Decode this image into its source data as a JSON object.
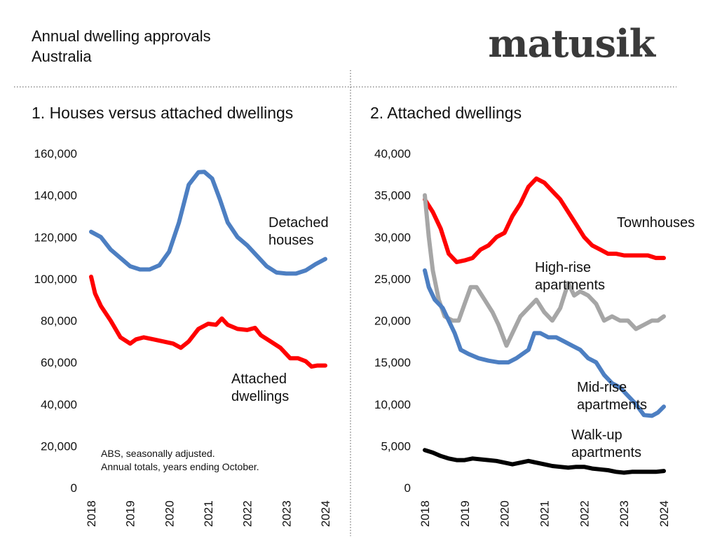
{
  "header": {
    "title": "Annual dwelling approvals",
    "subtitle": "Australia",
    "brand": "matusik"
  },
  "note": {
    "line1": "ABS, seasonally adjusted.",
    "line2": "Annual totals, years ending October."
  },
  "colors": {
    "blue": "#4d7fc2",
    "red": "#ff0000",
    "gray": "#a6a6a6",
    "black": "#000000"
  },
  "chart_data": [
    {
      "type": "line",
      "title": "1. Houses versus attached dwellings",
      "xlabel": "",
      "ylabel": "",
      "x_ticks": [
        "2018",
        "2019",
        "2020",
        "2021",
        "2022",
        "2023",
        "2024"
      ],
      "y_ticks": [
        "0",
        "20,000",
        "40,000",
        "60,000",
        "80,000",
        "100,000",
        "120,000",
        "140,000",
        "160,000"
      ],
      "xlim": [
        2018,
        2024
      ],
      "ylim": [
        0,
        160000
      ],
      "grid": false,
      "series": [
        {
          "name": "Detached houses",
          "label_lines": [
            "Detached",
            "houses"
          ],
          "color": "#4d7fc2",
          "points": [
            [
              2018.0,
              122500
            ],
            [
              2018.25,
              120000
            ],
            [
              2018.5,
              114000
            ],
            [
              2018.75,
              110000
            ],
            [
              2019.0,
              106000
            ],
            [
              2019.25,
              104500
            ],
            [
              2019.5,
              104500
            ],
            [
              2019.75,
              106500
            ],
            [
              2020.0,
              113000
            ],
            [
              2020.25,
              127000
            ],
            [
              2020.5,
              145000
            ],
            [
              2020.75,
              151000
            ],
            [
              2020.9,
              151200
            ],
            [
              2021.1,
              148000
            ],
            [
              2021.3,
              138000
            ],
            [
              2021.5,
              127000
            ],
            [
              2021.75,
              120000
            ],
            [
              2022.0,
              116000
            ],
            [
              2022.25,
              111000
            ],
            [
              2022.5,
              106000
            ],
            [
              2022.75,
              103000
            ],
            [
              2023.0,
              102500
            ],
            [
              2023.25,
              102500
            ],
            [
              2023.5,
              104000
            ],
            [
              2023.75,
              107000
            ],
            [
              2024.0,
              109500
            ]
          ]
        },
        {
          "name": "Attached dwellings",
          "label_lines": [
            "Attached",
            "dwellings"
          ],
          "color": "#ff0000",
          "points": [
            [
              2018.0,
              101000
            ],
            [
              2018.1,
              93000
            ],
            [
              2018.25,
              87000
            ],
            [
              2018.5,
              80000
            ],
            [
              2018.75,
              72000
            ],
            [
              2019.0,
              69000
            ],
            [
              2019.15,
              71000
            ],
            [
              2019.35,
              72000
            ],
            [
              2019.6,
              71000
            ],
            [
              2019.85,
              70000
            ],
            [
              2020.1,
              69000
            ],
            [
              2020.3,
              67000
            ],
            [
              2020.5,
              70000
            ],
            [
              2020.75,
              76000
            ],
            [
              2021.0,
              78500
            ],
            [
              2021.2,
              78000
            ],
            [
              2021.35,
              81000
            ],
            [
              2021.5,
              78000
            ],
            [
              2021.75,
              76000
            ],
            [
              2022.0,
              75500
            ],
            [
              2022.2,
              76500
            ],
            [
              2022.35,
              73000
            ],
            [
              2022.6,
              70000
            ],
            [
              2022.85,
              67000
            ],
            [
              2023.1,
              62000
            ],
            [
              2023.3,
              62000
            ],
            [
              2023.5,
              60500
            ],
            [
              2023.65,
              58000
            ],
            [
              2023.8,
              58500
            ],
            [
              2024.0,
              58500
            ]
          ]
        }
      ]
    },
    {
      "type": "line",
      "title": "2. Attached dwellings",
      "xlabel": "",
      "ylabel": "",
      "x_ticks": [
        "2018",
        "2019",
        "2020",
        "2021",
        "2022",
        "2023",
        "2024"
      ],
      "y_ticks": [
        "0",
        "5,000",
        "10,000",
        "15,000",
        "20,000",
        "25,000",
        "30,000",
        "35,000",
        "40,000"
      ],
      "xlim": [
        2018,
        2024
      ],
      "ylim": [
        0,
        40000
      ],
      "grid": false,
      "series": [
        {
          "name": "Townhouses",
          "label_lines": [
            "Townhouses"
          ],
          "color": "#ff0000",
          "points": [
            [
              2018.0,
              34500
            ],
            [
              2018.2,
              33000
            ],
            [
              2018.4,
              31000
            ],
            [
              2018.6,
              28000
            ],
            [
              2018.8,
              27000
            ],
            [
              2019.0,
              27200
            ],
            [
              2019.2,
              27500
            ],
            [
              2019.4,
              28500
            ],
            [
              2019.6,
              29000
            ],
            [
              2019.8,
              30000
            ],
            [
              2020.0,
              30500
            ],
            [
              2020.2,
              32500
            ],
            [
              2020.4,
              34000
            ],
            [
              2020.6,
              36000
            ],
            [
              2020.8,
              37000
            ],
            [
              2021.0,
              36500
            ],
            [
              2021.2,
              35500
            ],
            [
              2021.4,
              34500
            ],
            [
              2021.6,
              33000
            ],
            [
              2021.8,
              31500
            ],
            [
              2022.0,
              30000
            ],
            [
              2022.2,
              29000
            ],
            [
              2022.4,
              28500
            ],
            [
              2022.6,
              28000
            ],
            [
              2022.8,
              28000
            ],
            [
              2023.0,
              27800
            ],
            [
              2023.2,
              27800
            ],
            [
              2023.4,
              27800
            ],
            [
              2023.6,
              27800
            ],
            [
              2023.8,
              27500
            ],
            [
              2024.0,
              27500
            ]
          ]
        },
        {
          "name": "High-rise apartments",
          "label_lines": [
            "High-rise",
            "apartments"
          ],
          "color": "#a6a6a6",
          "points": [
            [
              2018.0,
              35000
            ],
            [
              2018.1,
              30000
            ],
            [
              2018.2,
              26000
            ],
            [
              2018.35,
              22500
            ],
            [
              2018.5,
              20500
            ],
            [
              2018.7,
              20000
            ],
            [
              2018.85,
              20000
            ],
            [
              2019.0,
              22000
            ],
            [
              2019.15,
              24000
            ],
            [
              2019.3,
              24000
            ],
            [
              2019.5,
              22500
            ],
            [
              2019.7,
              21000
            ],
            [
              2019.85,
              19500
            ],
            [
              2020.05,
              17000
            ],
            [
              2020.2,
              18500
            ],
            [
              2020.4,
              20500
            ],
            [
              2020.6,
              21500
            ],
            [
              2020.8,
              22500
            ],
            [
              2021.0,
              21000
            ],
            [
              2021.2,
              20000
            ],
            [
              2021.4,
              21500
            ],
            [
              2021.6,
              24500
            ],
            [
              2021.75,
              23000
            ],
            [
              2021.9,
              23500
            ],
            [
              2022.1,
              23000
            ],
            [
              2022.3,
              22000
            ],
            [
              2022.5,
              20000
            ],
            [
              2022.7,
              20500
            ],
            [
              2022.9,
              20000
            ],
            [
              2023.1,
              20000
            ],
            [
              2023.3,
              19000
            ],
            [
              2023.5,
              19500
            ],
            [
              2023.7,
              20000
            ],
            [
              2023.85,
              20000
            ],
            [
              2024.0,
              20500
            ]
          ]
        },
        {
          "name": "Mid-rise apartments",
          "label_lines": [
            "Mid-rise",
            "apartments"
          ],
          "color": "#4d7fc2",
          "points": [
            [
              2018.0,
              26000
            ],
            [
              2018.1,
              24000
            ],
            [
              2018.25,
              22500
            ],
            [
              2018.45,
              21500
            ],
            [
              2018.6,
              20000
            ],
            [
              2018.75,
              18500
            ],
            [
              2018.9,
              16500
            ],
            [
              2019.1,
              16000
            ],
            [
              2019.35,
              15500
            ],
            [
              2019.6,
              15200
            ],
            [
              2019.85,
              15000
            ],
            [
              2020.1,
              15000
            ],
            [
              2020.3,
              15500
            ],
            [
              2020.45,
              16000
            ],
            [
              2020.6,
              16500
            ],
            [
              2020.75,
              18500
            ],
            [
              2020.9,
              18500
            ],
            [
              2021.1,
              18000
            ],
            [
              2021.3,
              18000
            ],
            [
              2021.5,
              17500
            ],
            [
              2021.7,
              17000
            ],
            [
              2021.9,
              16500
            ],
            [
              2022.1,
              15500
            ],
            [
              2022.3,
              15000
            ],
            [
              2022.5,
              13500
            ],
            [
              2022.7,
              12500
            ],
            [
              2022.9,
              12000
            ],
            [
              2023.1,
              11000
            ],
            [
              2023.3,
              10000
            ],
            [
              2023.5,
              8700
            ],
            [
              2023.7,
              8600
            ],
            [
              2023.85,
              9000
            ],
            [
              2024.0,
              9700
            ]
          ]
        },
        {
          "name": "Walk-up apartments",
          "label_lines": [
            "Walk-up",
            "apartments"
          ],
          "color": "#000000",
          "points": [
            [
              2018.0,
              4500
            ],
            [
              2018.2,
              4200
            ],
            [
              2018.4,
              3800
            ],
            [
              2018.6,
              3500
            ],
            [
              2018.8,
              3300
            ],
            [
              2019.0,
              3300
            ],
            [
              2019.2,
              3500
            ],
            [
              2019.4,
              3400
            ],
            [
              2019.6,
              3300
            ],
            [
              2019.8,
              3200
            ],
            [
              2020.0,
              3000
            ],
            [
              2020.2,
              2800
            ],
            [
              2020.4,
              3000
            ],
            [
              2020.6,
              3200
            ],
            [
              2020.8,
              3000
            ],
            [
              2021.0,
              2800
            ],
            [
              2021.2,
              2600
            ],
            [
              2021.4,
              2500
            ],
            [
              2021.6,
              2400
            ],
            [
              2021.8,
              2500
            ],
            [
              2022.0,
              2500
            ],
            [
              2022.2,
              2300
            ],
            [
              2022.4,
              2200
            ],
            [
              2022.6,
              2100
            ],
            [
              2022.8,
              1900
            ],
            [
              2023.0,
              1800
            ],
            [
              2023.2,
              1900
            ],
            [
              2023.4,
              1900
            ],
            [
              2023.6,
              1900
            ],
            [
              2023.8,
              1900
            ],
            [
              2024.0,
              2000
            ]
          ]
        }
      ]
    }
  ]
}
